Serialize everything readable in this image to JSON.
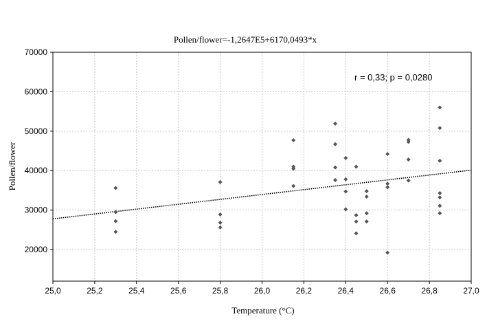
{
  "chart_data": {
    "type": "scatter",
    "title": "Pollen/flower=-1,2647E5+6170,0493*x",
    "xlabel": "Temperature (°C)",
    "ylabel": "Pollen/flower",
    "annotation": "r = 0,33; p = 0,0280",
    "xlim": [
      25.0,
      27.0
    ],
    "ylim": [
      12000,
      70000
    ],
    "xticks": [
      25.0,
      25.2,
      25.4,
      25.6,
      25.8,
      26.0,
      26.2,
      26.4,
      26.6,
      26.8,
      27.0
    ],
    "xtick_labels": [
      "25,0",
      "25,2",
      "25,4",
      "25,6",
      "25,8",
      "26,0",
      "26,2",
      "26,4",
      "26,6",
      "26,8",
      "27,0"
    ],
    "yticks": [
      20000,
      30000,
      40000,
      50000,
      60000,
      70000
    ],
    "ytick_labels": [
      "20000",
      "30000",
      "40000",
      "50000",
      "60000",
      "70000"
    ],
    "grid": true,
    "regression": {
      "intercept": -126470,
      "slope": 6170.0493,
      "style": "dotted"
    },
    "marker_color": "#555555",
    "points": [
      {
        "x": 25.3,
        "y": 35600
      },
      {
        "x": 25.3,
        "y": 29500
      },
      {
        "x": 25.3,
        "y": 27200
      },
      {
        "x": 25.3,
        "y": 24500
      },
      {
        "x": 25.8,
        "y": 37100
      },
      {
        "x": 25.8,
        "y": 28900
      },
      {
        "x": 25.8,
        "y": 26800
      },
      {
        "x": 25.8,
        "y": 25600
      },
      {
        "x": 26.15,
        "y": 47700
      },
      {
        "x": 26.15,
        "y": 41000
      },
      {
        "x": 26.15,
        "y": 40500
      },
      {
        "x": 26.15,
        "y": 36100
      },
      {
        "x": 26.35,
        "y": 51900
      },
      {
        "x": 26.35,
        "y": 46700
      },
      {
        "x": 26.35,
        "y": 40800
      },
      {
        "x": 26.35,
        "y": 37600
      },
      {
        "x": 26.4,
        "y": 43200
      },
      {
        "x": 26.4,
        "y": 37800
      },
      {
        "x": 26.4,
        "y": 34700
      },
      {
        "x": 26.4,
        "y": 30200
      },
      {
        "x": 26.45,
        "y": 41000
      },
      {
        "x": 26.45,
        "y": 28700
      },
      {
        "x": 26.45,
        "y": 27100
      },
      {
        "x": 26.45,
        "y": 24100
      },
      {
        "x": 26.5,
        "y": 34800
      },
      {
        "x": 26.5,
        "y": 33400
      },
      {
        "x": 26.5,
        "y": 29200
      },
      {
        "x": 26.5,
        "y": 27100
      },
      {
        "x": 26.6,
        "y": 44200
      },
      {
        "x": 26.6,
        "y": 36700
      },
      {
        "x": 26.6,
        "y": 35800
      },
      {
        "x": 26.6,
        "y": 19200
      },
      {
        "x": 26.7,
        "y": 47800
      },
      {
        "x": 26.7,
        "y": 47300
      },
      {
        "x": 26.7,
        "y": 42800
      },
      {
        "x": 26.7,
        "y": 37500
      },
      {
        "x": 26.85,
        "y": 56000
      },
      {
        "x": 26.85,
        "y": 50800
      },
      {
        "x": 26.85,
        "y": 42500
      },
      {
        "x": 26.85,
        "y": 34300
      },
      {
        "x": 26.85,
        "y": 33200
      },
      {
        "x": 26.85,
        "y": 31100
      },
      {
        "x": 26.85,
        "y": 29200
      }
    ]
  }
}
